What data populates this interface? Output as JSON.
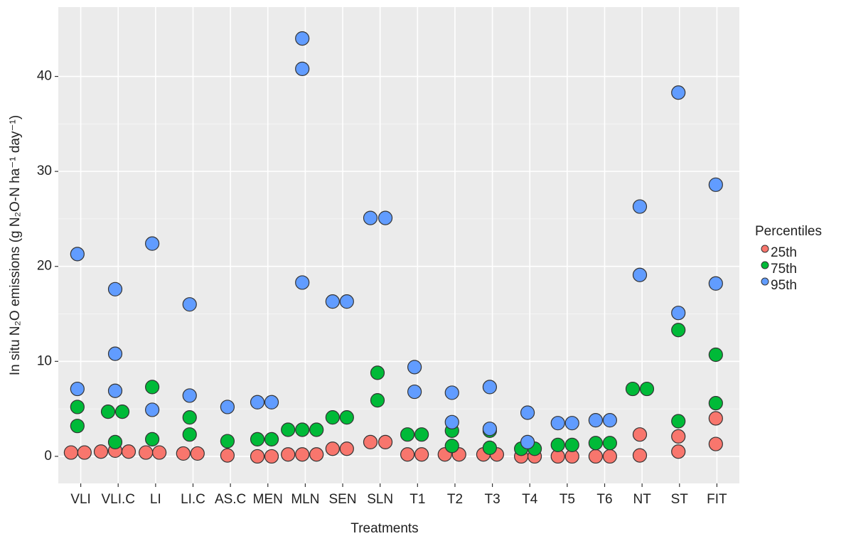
{
  "chart_data": {
    "type": "scatter",
    "x_label": "Treatments",
    "y_label": "In situ N₂O emissions (g N₂O-N ha⁻¹ day⁻¹)",
    "legend_title": "Percentiles",
    "legend_position": "right",
    "grid": true,
    "categories": [
      "VLI",
      "VLI.C",
      "LI",
      "LI.C",
      "AS.C",
      "MEN",
      "MLN",
      "SEN",
      "SLN",
      "T1",
      "T2",
      "T3",
      "T4",
      "T5",
      "T6",
      "NT",
      "ST",
      "FIT"
    ],
    "xlim": [
      0.4,
      18.6
    ],
    "ylim": [
      -2.85,
      47.3
    ],
    "yticks": [
      0,
      10,
      20,
      30,
      40
    ],
    "series": [
      {
        "name": "25th",
        "color": "#f8766d",
        "x": [
          0.74,
          1.1,
          1.54,
          1.92,
          2.28,
          2.74,
          3.1,
          3.74,
          4.12,
          4.92,
          5.72,
          6.1,
          6.54,
          6.92,
          7.3,
          7.73,
          8.11,
          8.74,
          9.14,
          9.73,
          10.11,
          10.73,
          11.11,
          11.76,
          12.12,
          12.77,
          13.13,
          13.75,
          14.13,
          14.76,
          15.14,
          15.94,
          15.94,
          16.97,
          16.97,
          17.97,
          17.97
        ],
        "values": [
          0.4,
          0.4,
          0.5,
          0.6,
          0.5,
          0.4,
          0.4,
          0.3,
          0.3,
          0.1,
          0.0,
          0.0,
          0.2,
          0.2,
          0.2,
          0.8,
          0.8,
          1.5,
          1.5,
          0.2,
          0.2,
          0.2,
          0.2,
          0.2,
          0.2,
          0.0,
          0.0,
          0.0,
          0.0,
          0.0,
          0.0,
          2.3,
          0.1,
          2.1,
          0.5,
          4.0,
          1.3
        ]
      },
      {
        "name": "75th",
        "color": "#00ba38",
        "x": [
          0.91,
          0.91,
          1.73,
          2.11,
          1.92,
          2.91,
          2.91,
          3.91,
          3.91,
          4.92,
          5.72,
          6.1,
          6.54,
          6.92,
          7.3,
          7.73,
          8.11,
          8.93,
          8.93,
          9.73,
          10.11,
          10.92,
          10.92,
          11.93,
          11.93,
          12.77,
          13.13,
          13.75,
          14.13,
          14.76,
          15.14,
          15.75,
          16.13,
          16.97,
          16.97,
          17.97,
          17.97
        ],
        "values": [
          5.2,
          3.2,
          4.7,
          4.7,
          1.5,
          7.3,
          1.8,
          4.1,
          2.3,
          1.6,
          1.8,
          1.8,
          2.8,
          2.8,
          2.8,
          4.1,
          4.1,
          8.8,
          5.9,
          2.3,
          2.3,
          2.7,
          1.1,
          2.7,
          0.9,
          0.8,
          0.8,
          1.2,
          1.2,
          1.4,
          1.4,
          7.1,
          7.1,
          13.3,
          3.7,
          10.7,
          5.6
        ]
      },
      {
        "name": "95th",
        "color": "#619cff",
        "x": [
          0.91,
          0.91,
          1.92,
          1.92,
          1.92,
          2.91,
          2.91,
          3.91,
          3.91,
          4.92,
          5.72,
          6.1,
          6.92,
          6.92,
          6.92,
          7.73,
          8.11,
          8.74,
          9.14,
          9.92,
          9.92,
          10.92,
          10.92,
          11.93,
          11.93,
          12.94,
          12.94,
          13.75,
          14.13,
          14.76,
          15.14,
          15.94,
          15.94,
          16.97,
          16.97,
          17.97,
          17.97
        ],
        "values": [
          21.3,
          7.1,
          17.6,
          10.8,
          6.9,
          22.4,
          4.9,
          16.0,
          6.4,
          5.2,
          5.7,
          5.7,
          44.0,
          40.8,
          18.3,
          16.3,
          16.3,
          25.1,
          25.1,
          9.4,
          6.8,
          6.7,
          3.6,
          7.3,
          2.9,
          4.6,
          1.5,
          3.5,
          3.5,
          3.8,
          3.8,
          26.3,
          19.1,
          38.3,
          15.1,
          28.6,
          18.2
        ]
      }
    ]
  }
}
